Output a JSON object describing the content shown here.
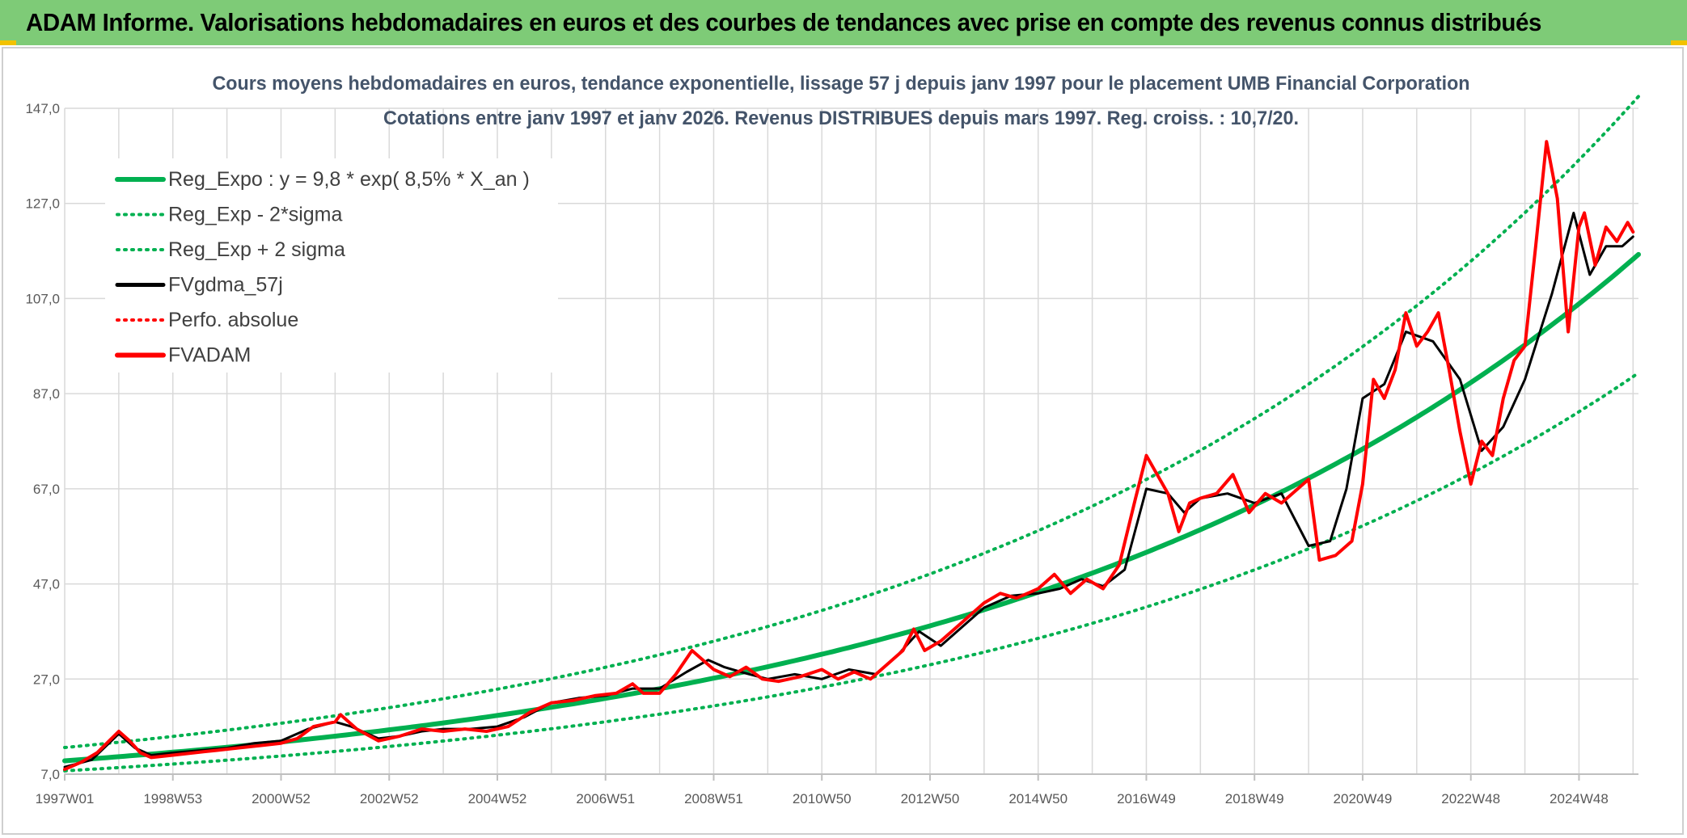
{
  "banner": {
    "title": "ADAM Informe. Valorisations hebdomadaires en euros et des courbes de tendances avec prise en compte des revenus connus distribués"
  },
  "colors": {
    "banner_bg": "#7ecb77",
    "reg_green": "#00b050",
    "fvgdma_black": "#000000",
    "fvadam_red": "#ff0000",
    "grid": "#d9d9d9",
    "title_text": "#44546a"
  },
  "chart_data": {
    "type": "line",
    "title": "Cours moyens hebdomadaires en euros, tendance exponentielle, lissage 57 j depuis janv 1997 pour le placement UMB Financial Corporation",
    "subtitle": "Cotations entre janv 1997 et janv 2026. Revenus DISTRIBUES depuis mars 1997. Reg. croiss. : 10,7/20.",
    "xlabel": "",
    "ylabel": "",
    "xlim": [
      1997.0,
      2026.1
    ],
    "ylim": [
      7.0,
      147.0
    ],
    "yticks": [
      "7,0",
      "27,0",
      "47,0",
      "67,0",
      "87,0",
      "107,0",
      "127,0",
      "147,0"
    ],
    "xticks": [
      {
        "label": "1997W01",
        "x": 1997.0
      },
      {
        "label": "1998W53",
        "x": 1999.0
      },
      {
        "label": "2000W52",
        "x": 2001.0
      },
      {
        "label": "2002W52",
        "x": 2003.0
      },
      {
        "label": "2004W52",
        "x": 2005.0
      },
      {
        "label": "2006W51",
        "x": 2007.0
      },
      {
        "label": "2008W51",
        "x": 2009.0
      },
      {
        "label": "2010W50",
        "x": 2011.0
      },
      {
        "label": "2012W50",
        "x": 2013.0
      },
      {
        "label": "2014W50",
        "x": 2015.0
      },
      {
        "label": "2016W49",
        "x": 2017.0
      },
      {
        "label": "2018W49",
        "x": 2019.0
      },
      {
        "label": "2020W49",
        "x": 2021.0
      },
      {
        "label": "2022W48",
        "x": 2023.0
      },
      {
        "label": "2024W48",
        "x": 2025.0
      }
    ],
    "grid": true,
    "legend_position": "top-left",
    "series": [
      {
        "name": "Reg_Expo : y = 9,8 * exp( 8,5% *  X_an )",
        "style": "solid",
        "color": "#00b050",
        "regression": {
          "a": 9.8,
          "rate": 0.085,
          "x0": 1997.0
        }
      },
      {
        "name": "Reg_Exp - 2*sigma",
        "style": "dotted",
        "color": "#00b050",
        "regression": {
          "a": 7.7,
          "rate": 0.085,
          "x0": 1997.0
        }
      },
      {
        "name": "Reg_Exp + 2 sigma",
        "style": "dotted",
        "color": "#00b050",
        "regression": {
          "a": 12.6,
          "rate": 0.085,
          "x0": 1997.0
        }
      },
      {
        "name": "FVgdma_57j",
        "style": "solid",
        "color": "#000000",
        "x": [
          1997.0,
          1997.5,
          1998.0,
          1998.3,
          1998.6,
          1999.0,
          1999.5,
          2000.0,
          2000.5,
          2001.0,
          2001.5,
          2002.0,
          2002.3,
          2002.8,
          2003.2,
          2003.6,
          2004.0,
          2004.5,
          2005.0,
          2005.5,
          2006.0,
          2006.5,
          2007.0,
          2007.5,
          2008.0,
          2008.5,
          2008.9,
          2009.2,
          2009.5,
          2010.0,
          2010.5,
          2011.0,
          2011.5,
          2012.0,
          2012.4,
          2012.8,
          2013.2,
          2013.6,
          2014.0,
          2014.5,
          2015.0,
          2015.4,
          2015.8,
          2016.2,
          2016.6,
          2017.0,
          2017.4,
          2017.7,
          2018.0,
          2018.5,
          2019.0,
          2019.5,
          2020.0,
          2020.4,
          2020.7,
          2021.0,
          2021.4,
          2021.8,
          2022.3,
          2022.8,
          2023.2,
          2023.6,
          2024.0,
          2024.5,
          2024.9,
          2025.2,
          2025.5,
          2025.8,
          2026.0
        ],
        "values": [
          8.5,
          10.0,
          15.5,
          12.5,
          11.0,
          11.5,
          12.0,
          12.5,
          13.5,
          14.0,
          16.5,
          18.0,
          17.0,
          14.5,
          15.0,
          16.0,
          16.5,
          16.5,
          17.0,
          19.0,
          22.0,
          23.0,
          23.5,
          25.0,
          25.0,
          28.5,
          31.0,
          29.5,
          28.5,
          27.0,
          28.0,
          27.0,
          29.0,
          28.0,
          32.0,
          37.0,
          34.0,
          38.0,
          42.0,
          44.5,
          45.0,
          46.0,
          48.0,
          46.5,
          50.0,
          67.0,
          66.0,
          62.0,
          65.0,
          66.0,
          64.0,
          66.0,
          55.0,
          56.0,
          67.0,
          86.0,
          89.0,
          100.0,
          98.0,
          90.0,
          75.0,
          80.0,
          90.0,
          108.0,
          125.0,
          112.0,
          118.0,
          118.0,
          120.0
        ]
      },
      {
        "name": "Perfo. absolue",
        "style": "dotted",
        "color": "#ff0000",
        "x": [],
        "values": []
      },
      {
        "name": "FVADAM",
        "style": "solid",
        "color": "#ff0000",
        "x": [
          1997.0,
          1997.3,
          1997.6,
          1998.0,
          1998.2,
          1998.4,
          1998.6,
          1999.0,
          1999.4,
          1999.8,
          2000.2,
          2000.6,
          2001.0,
          2001.3,
          2001.6,
          2002.0,
          2002.1,
          2002.4,
          2002.8,
          2003.2,
          2003.6,
          2004.0,
          2004.4,
          2004.8,
          2005.2,
          2005.6,
          2006.0,
          2006.4,
          2006.8,
          2007.2,
          2007.5,
          2007.7,
          2008.0,
          2008.3,
          2008.6,
          2008.8,
          2009.0,
          2009.3,
          2009.6,
          2009.9,
          2010.2,
          2010.6,
          2011.0,
          2011.3,
          2011.6,
          2011.9,
          2012.2,
          2012.5,
          2012.7,
          2012.9,
          2013.2,
          2013.6,
          2014.0,
          2014.3,
          2014.6,
          2015.0,
          2015.3,
          2015.6,
          2015.9,
          2016.2,
          2016.5,
          2016.8,
          2017.0,
          2017.2,
          2017.4,
          2017.6,
          2017.8,
          2018.0,
          2018.3,
          2018.6,
          2018.9,
          2019.2,
          2019.5,
          2019.8,
          2020.0,
          2020.2,
          2020.5,
          2020.8,
          2021.0,
          2021.2,
          2021.4,
          2021.6,
          2021.8,
          2022.0,
          2022.2,
          2022.4,
          2022.6,
          2022.8,
          2023.0,
          2023.2,
          2023.4,
          2023.6,
          2023.8,
          2024.0,
          2024.2,
          2024.4,
          2024.6,
          2024.8,
          2025.0,
          2025.1,
          2025.3,
          2025.5,
          2025.7,
          2025.9,
          2026.0
        ],
        "values": [
          8.0,
          9.5,
          11.5,
          16.0,
          14.0,
          11.5,
          10.5,
          11.0,
          11.5,
          12.0,
          12.5,
          13.0,
          13.5,
          14.5,
          17.0,
          18.0,
          19.5,
          16.5,
          14.0,
          15.0,
          16.5,
          16.0,
          16.5,
          16.0,
          17.0,
          20.0,
          22.0,
          22.5,
          23.5,
          24.0,
          26.0,
          24.0,
          24.0,
          28.0,
          33.0,
          31.0,
          29.0,
          27.5,
          29.5,
          27.0,
          26.5,
          27.5,
          29.0,
          27.0,
          28.5,
          27.0,
          30.0,
          33.0,
          37.5,
          33.0,
          35.0,
          39.0,
          43.0,
          45.0,
          44.0,
          46.0,
          49.0,
          45.0,
          48.0,
          46.0,
          51.0,
          65.0,
          74.0,
          70.0,
          66.0,
          58.0,
          64.0,
          65.0,
          66.0,
          70.0,
          62.0,
          66.0,
          64.0,
          67.0,
          69.0,
          52.0,
          53.0,
          56.0,
          68.0,
          90.0,
          86.0,
          92.0,
          104.0,
          97.0,
          100.0,
          104.0,
          92.0,
          79.0,
          68.0,
          77.0,
          74.0,
          86.0,
          94.0,
          97.0,
          118.0,
          140.0,
          128.0,
          100.0,
          122.0,
          125.0,
          114.0,
          122.0,
          119.0,
          123.0,
          121.0
        ]
      }
    ]
  }
}
